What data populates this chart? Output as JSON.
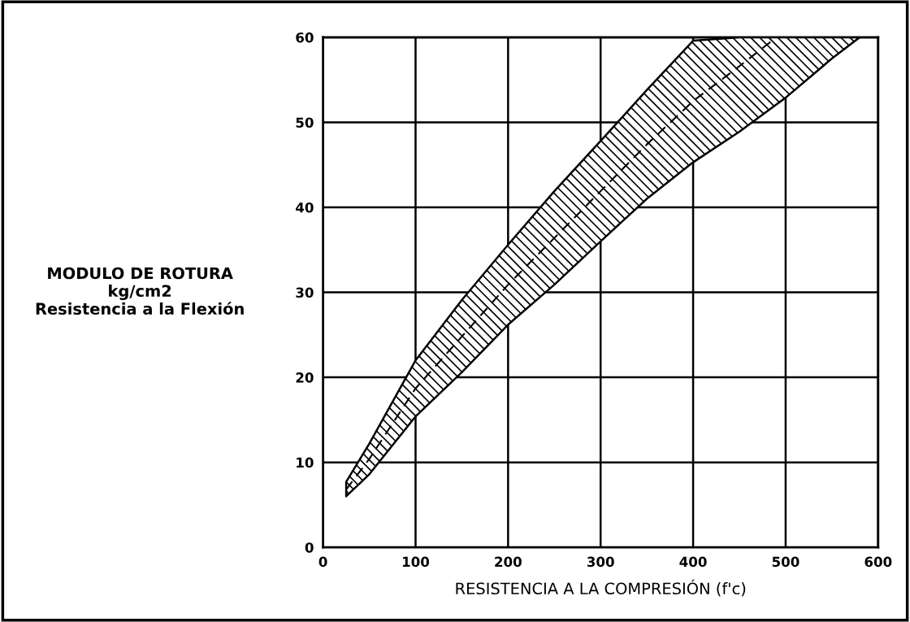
{
  "chart_data": {
    "type": "line",
    "xlabel": "RESISTENCIA A LA COMPRESIÓN (f'c)",
    "ylabel": "MODULO DE ROTURA\nkg/cm2\nResistencia a la Flexión",
    "x": [
      25,
      50,
      100,
      150,
      200,
      250,
      300,
      350,
      400,
      450,
      490,
      500,
      550,
      580
    ],
    "series": [
      {
        "color": "#000000",
        "values": [
          6.8,
          10.4,
          18.7,
          24.8,
          30.9,
          36.4,
          41.9,
          47.4,
          52.5,
          56.6,
          60,
          null,
          null,
          null
        ],
        "lower": [
          6.0,
          8.6,
          15.4,
          20.6,
          26.2,
          30.9,
          36.0,
          41.0,
          45.3,
          48.9,
          52.1,
          52.9,
          57.5,
          60
        ],
        "upper": [
          7.7,
          12.2,
          22.0,
          29.1,
          35.6,
          41.9,
          47.8,
          53.8,
          59.6,
          60,
          60,
          60,
          60,
          60
        ]
      }
    ],
    "xlim": [
      0,
      600
    ],
    "ylim": [
      0,
      60
    ],
    "xticks": [
      0,
      100,
      200,
      300,
      400,
      500,
      600
    ],
    "yticks": [
      0,
      10,
      20,
      30,
      40,
      50,
      60
    ],
    "grid": true,
    "line_style": "dashed",
    "marker": "none"
  }
}
